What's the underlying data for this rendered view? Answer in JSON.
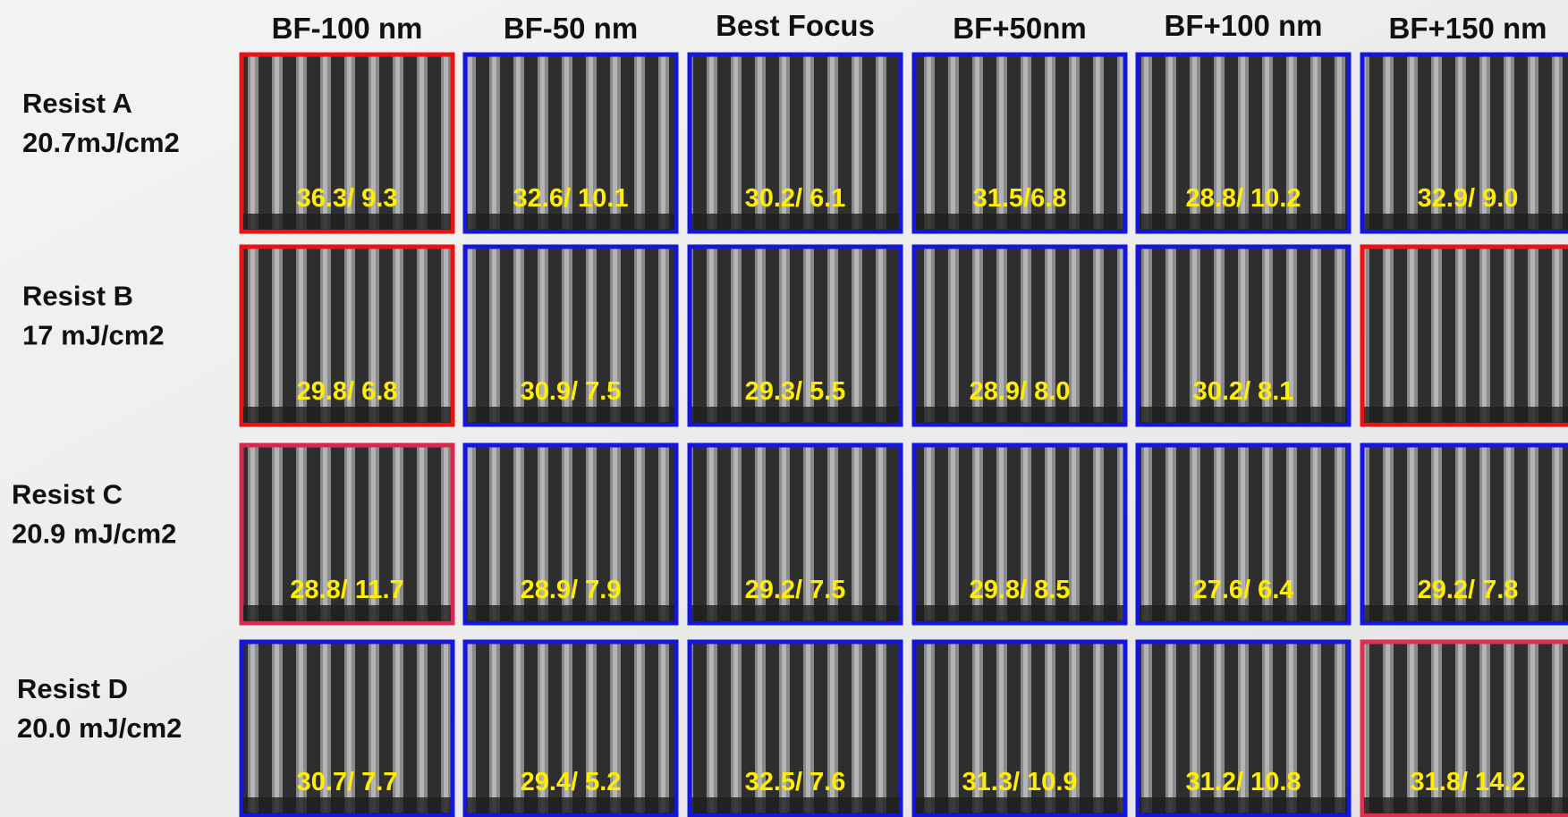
{
  "columns": [
    "BF-100 nm",
    "BF-50 nm",
    "Best Focus",
    "BF+50nm",
    "BF+100 nm",
    "BF+150 nm"
  ],
  "rows": [
    {
      "name": "Resist A",
      "dose": "20.7mJ/cm2",
      "cells": [
        {
          "label": "36.3/ 9.3",
          "border": "#ee1111"
        },
        {
          "label": "32.6/ 10.1",
          "border": "#1515e0"
        },
        {
          "label": "30.2/ 6.1",
          "border": "#1515e0"
        },
        {
          "label": "31.5/6.8",
          "border": "#1515e0"
        },
        {
          "label": "28.8/ 10.2",
          "border": "#1515e0"
        },
        {
          "label": "32.9/ 9.0",
          "border": "#1515e0"
        }
      ]
    },
    {
      "name": "Resist B",
      "dose": "17 mJ/cm2",
      "cells": [
        {
          "label": "29.8/ 6.8",
          "border": "#ee1111"
        },
        {
          "label": "30.9/ 7.5",
          "border": "#1515e0"
        },
        {
          "label": "29.3/ 5.5",
          "border": "#1515e0"
        },
        {
          "label": "28.9/ 8.0",
          "border": "#1515e0"
        },
        {
          "label": "30.2/ 8.1",
          "border": "#1515e0"
        },
        {
          "label": null,
          "border": "#ee1111"
        }
      ]
    },
    {
      "name": "Resist C",
      "dose": "20.9 mJ/cm2",
      "cells": [
        {
          "label": "28.8/ 11.7",
          "border": "#d82850"
        },
        {
          "label": "28.9/ 7.9",
          "border": "#1515e0"
        },
        {
          "label": "29.2/ 7.5",
          "border": "#1515e0"
        },
        {
          "label": "29.8/ 8.5",
          "border": "#1515e0"
        },
        {
          "label": "27.6/ 6.4",
          "border": "#1515e0"
        },
        {
          "label": "29.2/ 7.8",
          "border": "#1515e0"
        }
      ]
    },
    {
      "name": "Resist D",
      "dose": "20.0 mJ/cm2",
      "cells": [
        {
          "label": "30.7/ 7.7",
          "border": "#1515e0"
        },
        {
          "label": "29.4/ 5.2",
          "border": "#1515e0"
        },
        {
          "label": "32.5/ 7.6",
          "border": "#1515e0"
        },
        {
          "label": "31.3/ 10.9",
          "border": "#1515e0"
        },
        {
          "label": "31.2/ 10.8",
          "border": "#1515e0"
        },
        {
          "label": "31.8/ 14.2",
          "border": "#e03050"
        }
      ]
    }
  ]
}
